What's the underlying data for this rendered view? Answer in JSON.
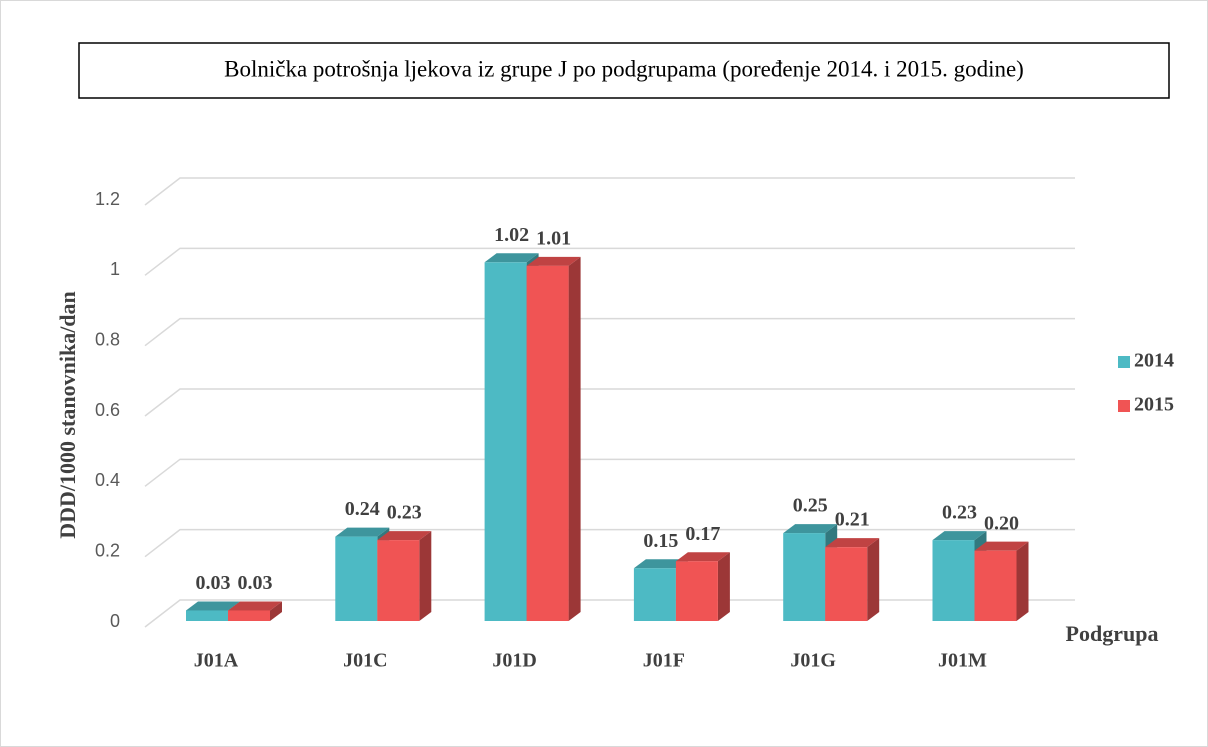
{
  "chart_data": {
    "type": "bar3d",
    "title": "Bolnička potrošnja ljekova iz grupe J po podgrupama (poređenje 2014. i 2015. godine)",
    "y_label": "DDD/1000 stanovnika/dan",
    "x_label": "Podgrupa",
    "categories": [
      "J01A",
      "J01C",
      "J01D",
      "J01F",
      "J01G",
      "J01M"
    ],
    "series": [
      {
        "name": "2014",
        "color": "#4dbac4",
        "values": [
          0.03,
          0.24,
          1.02,
          0.15,
          0.25,
          0.23
        ],
        "value_labels": [
          "0.03",
          "0.24",
          "1.02",
          "0.15",
          "0.25",
          "0.23"
        ]
      },
      {
        "name": "2015",
        "color": "#f05454",
        "values": [
          0.03,
          0.23,
          1.01,
          0.17,
          0.21,
          0.2
        ],
        "value_labels": [
          "0.03",
          "0.23",
          "1.01",
          "0.17",
          "0.21",
          "0.20"
        ]
      }
    ],
    "ylim": [
      0,
      1.2
    ],
    "yticks": [
      0,
      0.2,
      0.4,
      0.6,
      0.8,
      1,
      1.2
    ],
    "grid": true,
    "legend": "right"
  }
}
